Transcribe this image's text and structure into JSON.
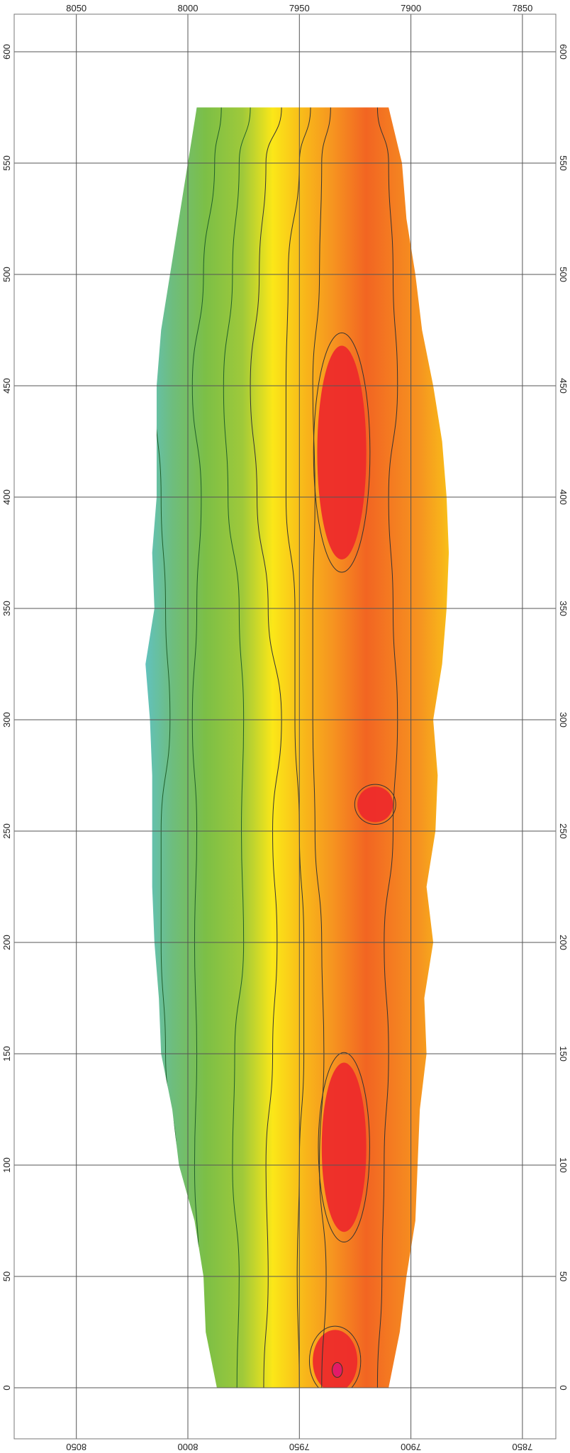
{
  "chart_data": {
    "type": "heatmap",
    "title": "",
    "xlabel": "",
    "ylabel": "",
    "x_axis": {
      "range": [
        8100,
        7820
      ],
      "direction": "decreasing-left-to-right",
      "ticks": [
        8050,
        8000,
        7950,
        7900,
        7850
      ],
      "tick_labels": [
        "8050",
        "8000",
        "7950",
        "7900",
        "7850"
      ]
    },
    "y_axis": {
      "range": [
        -10,
        620
      ],
      "ticks": [
        0,
        50,
        100,
        150,
        200,
        250,
        300,
        350,
        400,
        450,
        500,
        550,
        600
      ],
      "tick_labels": [
        "0",
        "50",
        "100",
        "150",
        "200",
        "250",
        "300",
        "350",
        "400",
        "450",
        "500",
        "550",
        "600"
      ]
    },
    "grid": true,
    "legend": "none",
    "color_scale": [
      "#1e90d8",
      "#5bc4dd",
      "#6ebd7e",
      "#7cbf46",
      "#9fc93a",
      "#d2dd28",
      "#fbe718",
      "#f8b51a",
      "#f69420",
      "#f26522",
      "#ed2b2b",
      "#e0196e"
    ],
    "data_extent": {
      "x_west": [
        7987,
        7992,
        7993,
        7997,
        8004,
        8007,
        8012,
        8013,
        8015,
        8016,
        8016,
        8016,
        8017,
        8019,
        8015,
        8016,
        8014,
        8014,
        8014,
        8012,
        8008,
        8004,
        8000,
        7996
      ],
      "x_east": [
        7910,
        7905,
        7902,
        7898,
        7897,
        7896,
        7893,
        7894,
        7890,
        7893,
        7889,
        7888,
        7890,
        7886,
        7884,
        7883,
        7884,
        7886,
        7890,
        7895,
        7898,
        7902,
        7904,
        7910
      ],
      "y": [
        0,
        25,
        50,
        75,
        100,
        125,
        150,
        175,
        200,
        225,
        250,
        275,
        300,
        325,
        350,
        375,
        400,
        425,
        450,
        475,
        500,
        525,
        550,
        575
      ]
    },
    "band_boundaries": [
      {
        "value": "band-1",
        "x": [
          8000,
          8002,
          8005,
          8010,
          8012,
          8012,
          8008,
          8010,
          8012,
          8015,
          8011,
          8003,
          7998
        ]
      },
      {
        "value": "band-2",
        "x": [
          7991,
          7995,
          7997,
          7996,
          7997,
          7996,
          7998,
          7996,
          7994,
          7998,
          7993,
          7988,
          7985
        ]
      },
      {
        "value": "band-3",
        "x": [
          7978,
          7977,
          7980,
          7979,
          7975,
          7976,
          7975,
          7977,
          7982,
          7984,
          7980,
          7977,
          7972
        ]
      },
      {
        "value": "band-4",
        "x": [
          7966,
          7964,
          7965,
          7962,
          7960,
          7962,
          7958,
          7964,
          7969,
          7972,
          7968,
          7965,
          7958
        ]
      },
      {
        "value": "band-5",
        "x": [
          7950,
          7951,
          7950,
          7948,
          7948,
          7950,
          7952,
          7952,
          7956,
          7956,
          7955,
          7950,
          7945
        ]
      }
    ],
    "hot_spots": [
      {
        "cx": 7931,
        "cy": 420,
        "rx": 11,
        "ry": 48,
        "level": "max"
      },
      {
        "cx": 7930,
        "cy": 108,
        "rx": 10,
        "ry": 38,
        "level": "max"
      },
      {
        "cx": 7916,
        "cy": 262,
        "rx": 8,
        "ry": 8,
        "level": "max"
      },
      {
        "cx": 7934,
        "cy": 12,
        "rx": 10,
        "ry": 14,
        "level": "max"
      },
      {
        "cx": 7933,
        "cy": 8,
        "rx": 2,
        "ry": 3,
        "level": "peak"
      }
    ]
  }
}
